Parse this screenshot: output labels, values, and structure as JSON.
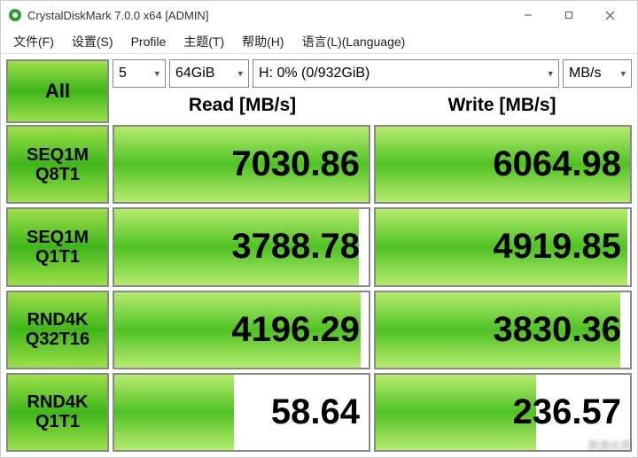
{
  "window": {
    "title": "CrystalDiskMark 7.0.0 x64 [ADMIN]",
    "icon_colors": {
      "outer": "#2aa02a",
      "inner": "#ffffff"
    }
  },
  "menubar": {
    "items": [
      {
        "label": "文件(F)"
      },
      {
        "label": "设置(S)"
      },
      {
        "label": "Profile"
      },
      {
        "label": "主题(T)"
      },
      {
        "label": "帮助(H)"
      },
      {
        "label": "语言(L)(Language)"
      }
    ]
  },
  "controls": {
    "all_label": "All",
    "runs": "5",
    "size": "64GiB",
    "drive": "H: 0% (0/932GiB)",
    "unit": "MB/s"
  },
  "headers": {
    "read": "Read [MB/s]",
    "write": "Write [MB/s]"
  },
  "tests": [
    {
      "line1": "SEQ1M",
      "line2": "Q8T1",
      "read": "7030.86",
      "read_fill": 100,
      "write": "6064.98",
      "write_fill": 100
    },
    {
      "line1": "SEQ1M",
      "line2": "Q1T1",
      "read": "3788.78",
      "read_fill": 96,
      "write": "4919.85",
      "write_fill": 99
    },
    {
      "line1": "RND4K",
      "line2": "Q32T16",
      "read": "4196.29",
      "read_fill": 97,
      "write": "3830.36",
      "write_fill": 96
    },
    {
      "line1": "RND4K",
      "line2": "Q1T1",
      "read": "58.64",
      "read_fill": 47,
      "write": "236.57",
      "write_fill": 63
    }
  ],
  "colors": {
    "green_gradient_top": "#9de04a",
    "green_gradient_mid": "#3fb61b",
    "cell_fill_top": "#b6ec6f",
    "cell_fill_mid": "#4fc224",
    "border": "#888888",
    "background": "#ffffff",
    "text": "#000000"
  },
  "watermark": "新浪众测"
}
